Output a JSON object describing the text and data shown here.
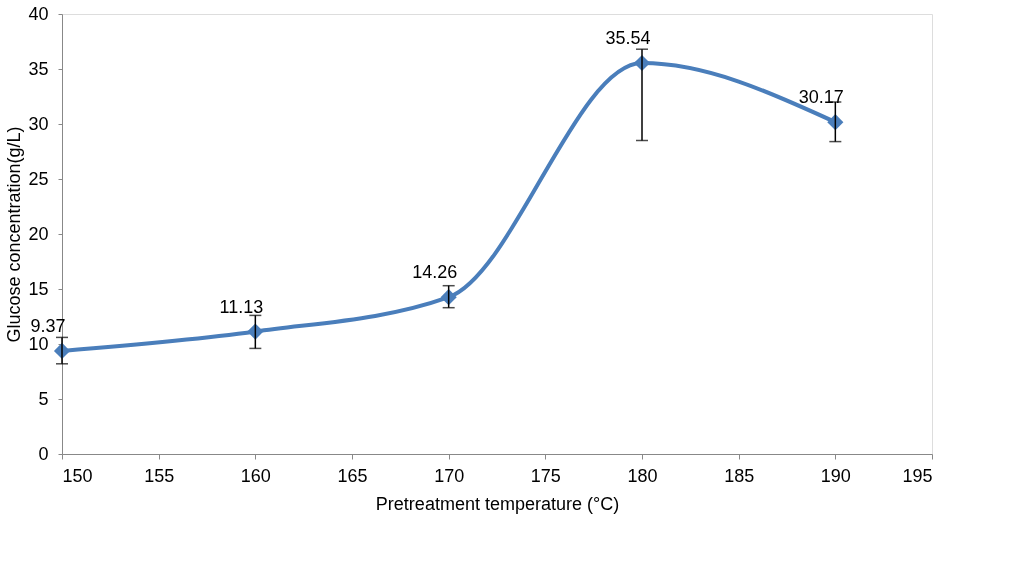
{
  "chart_data": {
    "type": "line",
    "xlabel": "Pretreatment temperature (°C)",
    "ylabel": "Glucose concentration(g/L)",
    "x": [
      150,
      160,
      170,
      180,
      190
    ],
    "series": [
      {
        "color": "#4a7ebb",
        "values": [
          9.37,
          11.13,
          14.26,
          35.54,
          30.17
        ],
        "errors": [
          [
            8.2,
            10.6
          ],
          [
            9.6,
            12.6
          ],
          [
            13.3,
            15.3
          ],
          [
            28.5,
            36.8
          ],
          [
            28.4,
            32.0
          ]
        ]
      }
    ],
    "data_labels": true,
    "xlim": [
      150,
      195
    ],
    "xticks": [
      150,
      155,
      160,
      165,
      170,
      175,
      180,
      185,
      190,
      195
    ],
    "ylim": [
      0,
      40
    ],
    "yticks": [
      0,
      5,
      10,
      15,
      20,
      25,
      30,
      35,
      40
    ],
    "marker": "diamond",
    "line_style": "solid",
    "grid": false
  }
}
